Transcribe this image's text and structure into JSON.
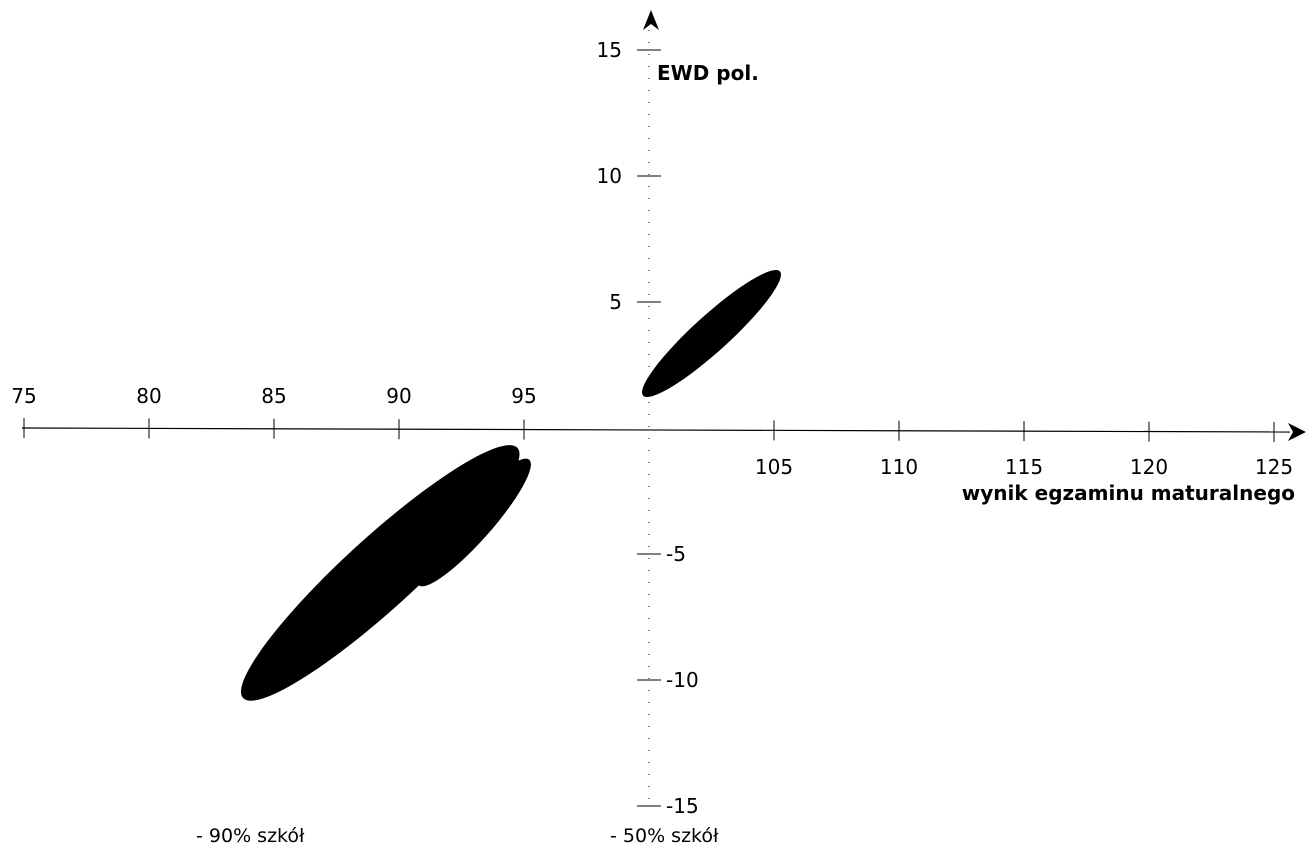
{
  "chart_data": {
    "type": "scatter",
    "title": "",
    "xlabel": "wynik egzaminu maturalnego",
    "ylabel": "EWD pol.",
    "x_ticks": [
      75,
      80,
      85,
      90,
      95,
      105,
      110,
      115,
      120,
      125
    ],
    "y_ticks": [
      15,
      10,
      5,
      -5,
      -10,
      -15
    ],
    "xlim": [
      75,
      125
    ],
    "ylim": [
      -15,
      15
    ],
    "grid": false,
    "legend": [
      {
        "label": "- 90% szkół"
      },
      {
        "label": "- 50% szkół"
      }
    ],
    "series": [
      {
        "x_range": [
          100,
          105
        ],
        "y_range": [
          1.5,
          6
        ],
        "fill": "#000000"
      },
      {
        "x_range": [
          91,
          95
        ],
        "y_range": [
          -6,
          -1.5
        ],
        "fill": "#000000"
      },
      {
        "x_range": [
          84,
          94.5
        ],
        "y_range": [
          -10.5,
          -1
        ],
        "fill": "#000000"
      }
    ],
    "colors": {
      "shape": "#000000",
      "axis": "#000000",
      "background": "#ffffff"
    }
  }
}
